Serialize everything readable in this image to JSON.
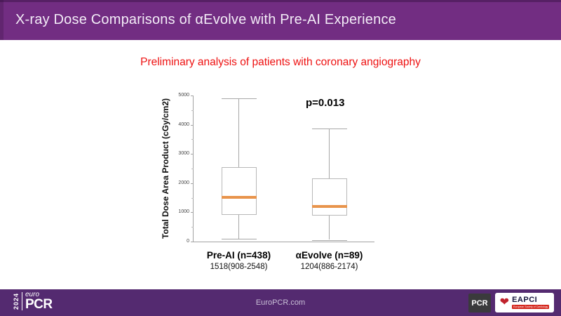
{
  "colors": {
    "header_bg": "#722d82",
    "footer_bg": "#542a70",
    "subtitle_red": "#ee1111"
  },
  "header": {
    "title": "X-ray Dose Comparisons of αEvolve with Pre-AI Experience"
  },
  "subtitle": {
    "text": "Preliminary analysis of patients with coronary angiography"
  },
  "chart_data": {
    "type": "boxplot",
    "title": "",
    "ylabel": "Total Dose Area Product (cGy/cm2)",
    "xlabel": "",
    "ylim": [
      0,
      5000
    ],
    "yticks": [
      0,
      1000,
      2000,
      3000,
      4000,
      5000
    ],
    "minor_tick_step": 500,
    "grid": false,
    "annotation": "p=0.013",
    "groups": [
      {
        "label": "Pre-AI (n=438)",
        "summary": "1518(908-2548)",
        "min": 100,
        "q1": 908,
        "median": 1518,
        "q3": 2548,
        "max": 4900
      },
      {
        "label": "αEvolve (n=89)",
        "summary": "1204(886-2174)",
        "min": 60,
        "q1": 886,
        "median": 1204,
        "q3": 2174,
        "max": 3870
      }
    ],
    "median_color": "#e8944c",
    "box_border_color": "#b8b8b8",
    "whisker_color": "#a8a8a8"
  },
  "footer": {
    "site": "EuroPCR.com",
    "logo_left": {
      "year": "2024",
      "euro": "euro",
      "pcr": "PCR"
    },
    "pcr_box": "PCR",
    "eapci": {
      "name": "EAPCI",
      "tagline": "European Society of Cardiology"
    }
  }
}
